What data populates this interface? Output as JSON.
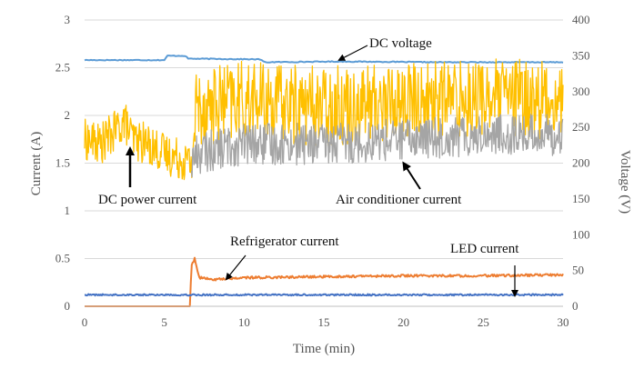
{
  "chart_data": {
    "type": "line",
    "title": "",
    "xlabel": "Time (min)",
    "ylabel": "Current (A)",
    "y2label": "Voltage (V)",
    "xlim": [
      0,
      30
    ],
    "ylim": [
      0,
      3
    ],
    "y2lim": [
      0,
      400
    ],
    "xticks": [
      "0",
      "5",
      "10",
      "15",
      "20",
      "25",
      "30"
    ],
    "yticks": [
      "0",
      "0.5",
      "1",
      "1.5",
      "2",
      "2.5",
      "3"
    ],
    "y2ticks": [
      "0",
      "50",
      "100",
      "150",
      "200",
      "250",
      "300",
      "350",
      "400"
    ],
    "grid": "horizontal",
    "legend": "none",
    "colors": {
      "dc_power_current": "#FFC000",
      "air_conditioner_current": "#A5A5A5",
      "dc_voltage": "#5B9BD5",
      "refrigerator_current": "#ED7D31",
      "led_current": "#4472C4"
    },
    "series": [
      {
        "key": "dc_voltage",
        "axis": "right",
        "x": [
          0,
          5,
          5.2,
          6.3,
          6.5,
          11,
          11.3,
          16,
          22,
          30
        ],
        "values": [
          344,
          344,
          350,
          350,
          346,
          345,
          341,
          342,
          341,
          341
        ]
      },
      {
        "key": "dc_power_current",
        "axis": "left",
        "x": [
          0,
          1,
          2,
          2.5,
          3,
          4,
          5,
          6,
          6.7,
          7,
          10,
          15,
          20,
          25,
          30
        ],
        "values": [
          1.75,
          1.7,
          1.85,
          1.95,
          1.75,
          1.7,
          1.6,
          1.55,
          1.5,
          2.1,
          2.15,
          2.1,
          2.15,
          2.2,
          2.15
        ]
      },
      {
        "key": "air_conditioner_current",
        "axis": "left",
        "x": [
          6.7,
          7,
          10,
          15,
          20,
          25,
          30
        ],
        "values": [
          1.5,
          1.6,
          1.7,
          1.7,
          1.75,
          1.8,
          1.8
        ]
      },
      {
        "key": "refrigerator_current",
        "axis": "left",
        "x": [
          0,
          6.6,
          6.7,
          6.9,
          7.2,
          8,
          10,
          15,
          20,
          25,
          30
        ],
        "values": [
          0.0,
          0.0,
          0.42,
          0.5,
          0.3,
          0.28,
          0.3,
          0.31,
          0.32,
          0.32,
          0.33
        ]
      },
      {
        "key": "led_current",
        "axis": "left",
        "x": [
          0,
          30
        ],
        "values": [
          0.12,
          0.12
        ]
      }
    ],
    "annotations": [
      {
        "key": "dc_voltage",
        "text": "DC voltage"
      },
      {
        "key": "dc_power_current",
        "text": "DC power current"
      },
      {
        "key": "air_conditioner_current",
        "text": "Air conditioner current"
      },
      {
        "key": "refrigerator_current",
        "text": "Refrigerator current"
      },
      {
        "key": "led_current",
        "text": "LED current"
      }
    ]
  }
}
